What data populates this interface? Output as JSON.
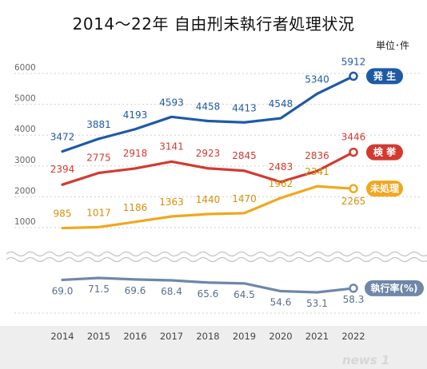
{
  "chart_data": {
    "type": "line",
    "title": "2014～22年 自由刑未執行者処理状況",
    "unit_label": "単位･件",
    "categories": [
      "2014",
      "2015",
      "2016",
      "2017",
      "2018",
      "2019",
      "2020",
      "2021",
      "2022"
    ],
    "y_ticks": [
      "6000",
      "5000",
      "4000",
      "3000",
      "2000",
      "1000"
    ],
    "ylim": [
      0,
      6300
    ],
    "grid": true,
    "series": [
      {
        "name": "発 生",
        "color": "#1e5aa6",
        "values": [
          3472,
          3881,
          4193,
          4593,
          4458,
          4413,
          4548,
          5340,
          5912
        ],
        "labels": [
          "3472",
          "3881",
          "4193",
          "4593",
          "4458",
          "4413",
          "4548",
          "5340",
          "5912"
        ]
      },
      {
        "name": "検 挙",
        "color": "#d23a30",
        "values": [
          2394,
          2775,
          2918,
          3141,
          2923,
          2845,
          2483,
          2836,
          3446
        ],
        "labels": [
          "2394",
          "2775",
          "2918",
          "3141",
          "2923",
          "2845",
          "2483",
          "2836",
          "3446"
        ]
      },
      {
        "name": "未処理",
        "color": "#f0a81e",
        "values": [
          985,
          1017,
          1186,
          1363,
          1440,
          1470,
          1962,
          2341,
          2265
        ],
        "labels": [
          "985",
          "1017",
          "1186",
          "1363",
          "1440",
          "1470",
          "1962",
          "2341",
          "2265"
        ]
      }
    ],
    "rate_series": {
      "name": "執行率(%)",
      "color": "#6f87a8",
      "values": [
        69.0,
        71.5,
        69.6,
        68.4,
        65.6,
        64.5,
        54.6,
        53.1,
        58.3
      ],
      "labels": [
        "69.0",
        "71.5",
        "69.6",
        "68.4",
        "65.6",
        "64.5",
        "54.6",
        "53.1",
        "58.3"
      ]
    },
    "watermark": "news 1"
  }
}
